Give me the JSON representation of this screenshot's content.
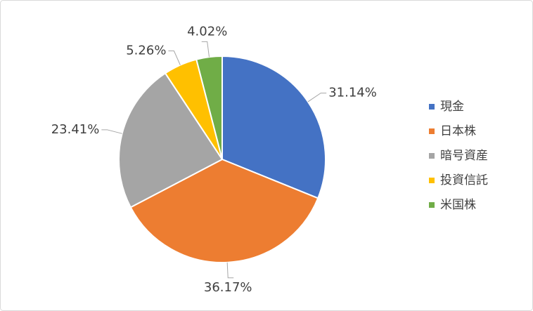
{
  "chart_data": {
    "type": "pie",
    "categories": [
      "現金",
      "日本株",
      "暗号資産",
      "投資信託",
      "米国株"
    ],
    "values": [
      31.14,
      36.17,
      23.41,
      5.26,
      4.02
    ],
    "value_labels": [
      "31.14%",
      "36.17%",
      "23.41%",
      "5.26%",
      "4.02%"
    ],
    "colors": [
      "#4472c4",
      "#ed7d31",
      "#a5a5a5",
      "#ffc000",
      "#70ad47"
    ],
    "legend": "right"
  }
}
